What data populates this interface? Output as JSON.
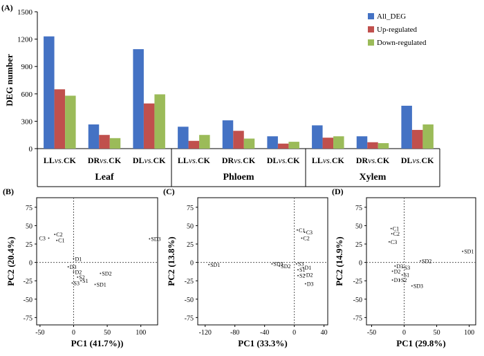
{
  "colors": {
    "all": "#4472C4",
    "up": "#C0504D",
    "down": "#9BBB59",
    "axis": "#000000",
    "guide": "#555555"
  },
  "chart_data": [
    {
      "panel": "(A)",
      "type": "bar",
      "ylabel": "DEG number",
      "ylim": [
        0,
        1500
      ],
      "yticks": [
        0,
        300,
        600,
        900,
        1200,
        1500
      ],
      "categories": [
        "LL vs.CK",
        "DR vs.CK",
        "DL vs.CK",
        "LL vs.CK",
        "DR vs.CK",
        "DL vs.CK",
        "LL vs.CK",
        "DR vs.CK",
        "DL vs.CK"
      ],
      "category_parts": [
        [
          "LL",
          "vs.",
          "CK"
        ],
        [
          "DR",
          "vs.",
          "CK"
        ],
        [
          "DL",
          "vs.",
          "CK"
        ],
        [
          "LL",
          "vs.",
          "CK"
        ],
        [
          "DR",
          "vs.",
          "CK"
        ],
        [
          "DL",
          "vs.",
          "CK"
        ],
        [
          "LL",
          "vs.",
          "CK"
        ],
        [
          "DR",
          "vs.",
          "CK"
        ],
        [
          "DL",
          "vs.",
          "CK"
        ]
      ],
      "groups": [
        {
          "name": "Leaf",
          "count": 3
        },
        {
          "name": "Phloem",
          "count": 3
        },
        {
          "name": "Xylem",
          "count": 3
        }
      ],
      "series": [
        {
          "name": "All_DEG",
          "color": "#4472C4",
          "values": [
            1230,
            265,
            1090,
            240,
            310,
            135,
            255,
            135,
            470
          ]
        },
        {
          "name": "Up-regulated",
          "color": "#C0504D",
          "values": [
            650,
            150,
            495,
            85,
            195,
            55,
            120,
            70,
            205
          ]
        },
        {
          "name": "Down-regulated",
          "color": "#9BBB59",
          "values": [
            580,
            115,
            595,
            150,
            110,
            75,
            135,
            60,
            265
          ]
        }
      ],
      "legend": "top-right",
      "grid": false
    },
    {
      "panel": "(B)",
      "type": "scatter",
      "xlabel": "PC1  (41.7%))",
      "ylabel": "PC2 (20.4%)",
      "xlim": [
        -55,
        125
      ],
      "ylim": [
        -85,
        88
      ],
      "xticks": [
        -50,
        0,
        50,
        100
      ],
      "yticks": [
        -75,
        -50,
        -25,
        0,
        25,
        50,
        75
      ],
      "points": [
        {
          "label": "C2",
          "x": -28,
          "y": 38
        },
        {
          "label": "C3",
          "x": -37,
          "y": 33
        },
        {
          "label": "C1",
          "x": -25,
          "y": 30
        },
        {
          "label": "D1",
          "x": 0,
          "y": 5
        },
        {
          "label": "D3",
          "x": -8,
          "y": -6
        },
        {
          "label": "D2",
          "x": 0,
          "y": -13
        },
        {
          "label": "S2",
          "x": 6,
          "y": -20
        },
        {
          "label": "S1",
          "x": 11,
          "y": -25
        },
        {
          "label": "S3",
          "x": -2,
          "y": -28
        },
        {
          "label": "SD2",
          "x": 40,
          "y": -15
        },
        {
          "label": "SD1",
          "x": 32,
          "y": -30
        },
        {
          "label": "SD3",
          "x": 113,
          "y": 32
        }
      ]
    },
    {
      "panel": "(C)",
      "type": "scatter",
      "xlabel": "PC1  (33.3%)",
      "ylabel": "PC2  (13.8%)",
      "xlim": [
        -130,
        45
      ],
      "ylim": [
        -85,
        88
      ],
      "xticks": [
        -120,
        -80,
        -40,
        0,
        40
      ],
      "yticks": [
        -75,
        -50,
        -25,
        0,
        25,
        50,
        75
      ],
      "points": [
        {
          "label": "C1",
          "x": 4,
          "y": 44
        },
        {
          "label": "C3",
          "x": 14,
          "y": 41
        },
        {
          "label": "C2",
          "x": 10,
          "y": 33
        },
        {
          "label": "SD1",
          "x": -115,
          "y": -3
        },
        {
          "label": "SD3",
          "x": -30,
          "y": -2
        },
        {
          "label": "SD2",
          "x": -20,
          "y": -5
        },
        {
          "label": "S3",
          "x": 3,
          "y": -2
        },
        {
          "label": "D1",
          "x": 12,
          "y": -7
        },
        {
          "label": "S1",
          "x": 5,
          "y": -10
        },
        {
          "label": "S2",
          "x": 5,
          "y": -18
        },
        {
          "label": "D2",
          "x": 14,
          "y": -17
        },
        {
          "label": "D3",
          "x": 15,
          "y": -29
        }
      ]
    },
    {
      "panel": "(D)",
      "type": "scatter",
      "xlabel": "PC1  (29.8%)",
      "ylabel": "PC2  (14.9%)",
      "xlim": [
        -58,
        110
      ],
      "ylim": [
        -85,
        88
      ],
      "xticks": [
        -50,
        0,
        50,
        100
      ],
      "yticks": [
        -75,
        -50,
        -25,
        0,
        25,
        50,
        75
      ],
      "points": [
        {
          "label": "C1",
          "x": -20,
          "y": 46
        },
        {
          "label": "C2",
          "x": -19,
          "y": 39
        },
        {
          "label": "C3",
          "x": -23,
          "y": 28
        },
        {
          "label": "SD2",
          "x": 25,
          "y": 2
        },
        {
          "label": "SD1",
          "x": 90,
          "y": 15
        },
        {
          "label": "D3",
          "x": -14,
          "y": -5
        },
        {
          "label": "S3",
          "x": -2,
          "y": -7
        },
        {
          "label": "D2",
          "x": -18,
          "y": -12
        },
        {
          "label": "S1",
          "x": -3,
          "y": -17
        },
        {
          "label": "D1",
          "x": -18,
          "y": -24
        },
        {
          "label": "S2",
          "x": -7,
          "y": -24
        },
        {
          "label": "SD3",
          "x": 12,
          "y": -32
        }
      ]
    }
  ]
}
